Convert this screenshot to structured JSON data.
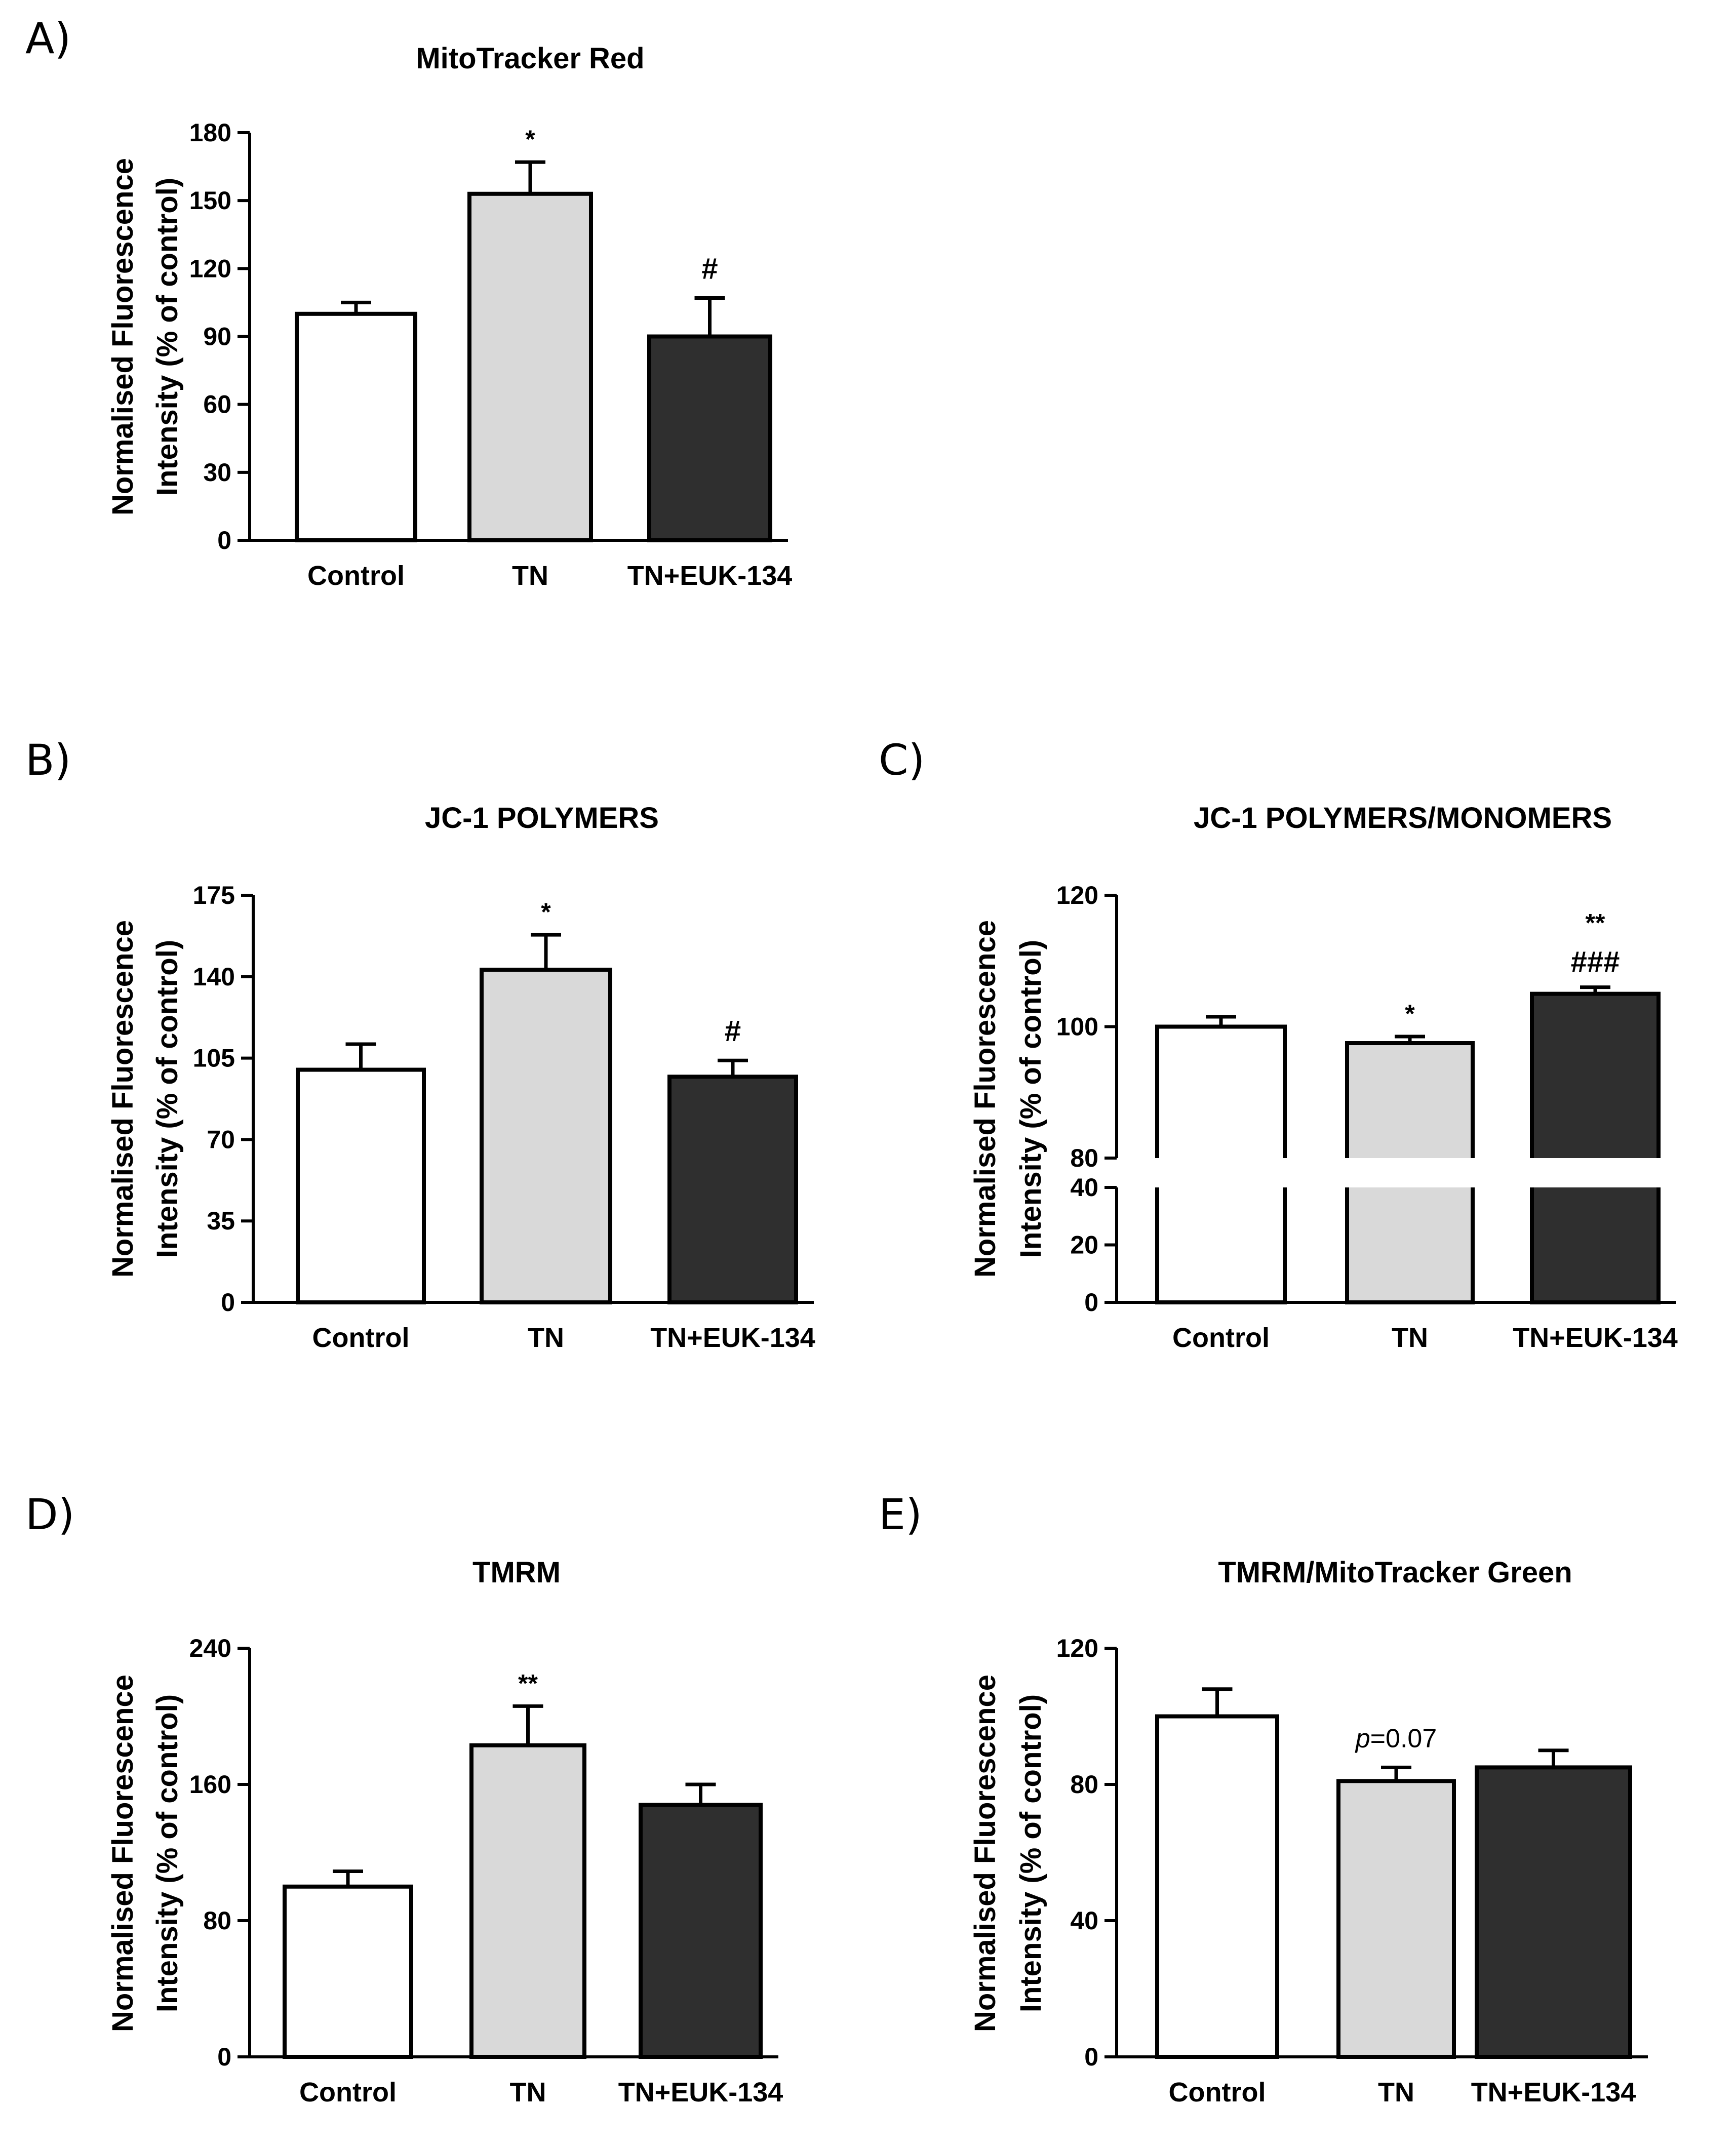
{
  "figure": {
    "panels": [
      {
        "letter": "A)"
      },
      {
        "letter": "B)"
      },
      {
        "letter": "C)"
      },
      {
        "letter": "D)"
      },
      {
        "letter": "E)"
      }
    ]
  },
  "colors": {
    "control": "#ffffff",
    "tn": "#d9d9d9",
    "tn_euk": "#2f2f2f",
    "stroke": "#000000"
  },
  "chart_data": [
    {
      "type": "bar",
      "panel": "A)",
      "title": "MitoTracker Red",
      "ylabel": [
        "Normalised Fluorescence",
        "Intensity (% of control)"
      ],
      "categories": [
        "Control",
        "TN",
        "TN+EUK-134"
      ],
      "values": [
        100,
        153,
        90
      ],
      "errors": [
        5,
        14,
        17
      ],
      "annotations": [
        "",
        "*",
        "#"
      ],
      "ylim": [
        0,
        180
      ],
      "yticks": [
        0,
        30,
        60,
        90,
        120,
        150,
        180
      ]
    },
    {
      "type": "bar",
      "panel": "B)",
      "title": "JC-1 POLYMERS",
      "ylabel": [
        "Normalised Fluorescence",
        "Intensity (% of control)"
      ],
      "categories": [
        "Control",
        "TN",
        "TN+EUK-134"
      ],
      "values": [
        100,
        143,
        97
      ],
      "errors": [
        11,
        15,
        7
      ],
      "annotations": [
        "",
        "*",
        "#"
      ],
      "ylim": [
        0,
        175
      ],
      "yticks": [
        0,
        35,
        70,
        105,
        140,
        175
      ]
    },
    {
      "type": "bar",
      "panel": "C)",
      "title": "JC-1 POLYMERS/MONOMERS",
      "ylabel": [
        "Normalised Fluorescence",
        "Intensity (% of control)"
      ],
      "categories": [
        "Control",
        "TN",
        "TN+EUK-134"
      ],
      "values": [
        100,
        97.5,
        105
      ],
      "errors": [
        1.5,
        1,
        1
      ],
      "annotations": [
        "",
        "*",
        "**|###"
      ],
      "axis_break": {
        "lower": [
          0,
          40
        ],
        "upper": [
          80,
          120
        ]
      },
      "yticks_lower": [
        0,
        20,
        40
      ],
      "yticks_upper": [
        80,
        100,
        120
      ]
    },
    {
      "type": "bar",
      "panel": "D)",
      "title": "TMRM",
      "ylabel": [
        "Normalised Fluorescence",
        "Intensity (% of control)"
      ],
      "categories": [
        "Control",
        "TN",
        "TN+EUK-134"
      ],
      "values": [
        100,
        183,
        148
      ],
      "errors": [
        9,
        23,
        12
      ],
      "annotations": [
        "",
        "**",
        ""
      ],
      "ylim": [
        0,
        240
      ],
      "yticks": [
        0,
        80,
        160,
        240
      ]
    },
    {
      "type": "bar",
      "panel": "E)",
      "title": "TMRM/MitoTracker Green",
      "ylabel": [
        "Normalised Fluorescence",
        "Intensity (% of control)"
      ],
      "categories": [
        "Control",
        "TN",
        "TN+EUK-134"
      ],
      "values": [
        100,
        81,
        85
      ],
      "errors": [
        8,
        4,
        5
      ],
      "annotations": [
        "",
        "p=0.07",
        ""
      ],
      "ylim": [
        0,
        120
      ],
      "yticks": [
        0,
        40,
        80,
        120
      ]
    }
  ]
}
